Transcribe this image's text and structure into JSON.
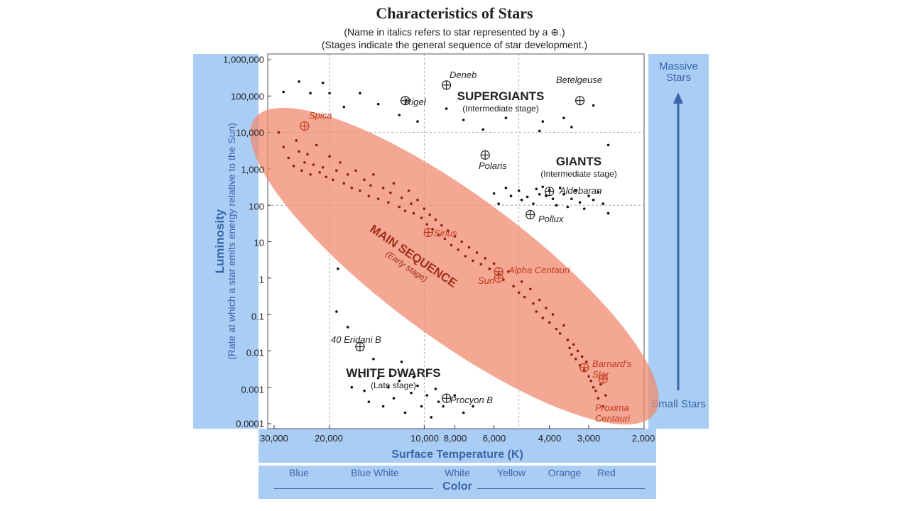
{
  "title": "Characteristics of Stars",
  "subtitle1": "(Name in italics refers to star represented by a ⊕.)",
  "subtitle2": "(Stages indicate the general sequence of star development.)",
  "y_axis": {
    "title": "Luminosity",
    "subtitle": "(Rate at which a star emits energy relative to the Sun)"
  },
  "x_axis": {
    "title": "Surface Temperature (K)"
  },
  "right_panel": {
    "top": "Massive Stars",
    "bottom": "Small Stars"
  },
  "color_axis": {
    "title": "Color",
    "names": [
      "Blue",
      "Blue White",
      "White",
      "Yellow",
      "Orange",
      "Red"
    ]
  },
  "regions": {
    "supergiants": {
      "title": "SUPERGIANTS",
      "stage": "(Intermediate stage)"
    },
    "giants": {
      "title": "GIANTS",
      "stage": "(Intermediate stage)"
    },
    "main_sequence": {
      "title": "MAIN SEQUENCE",
      "stage": "(Early stage)"
    },
    "white_dwarfs": {
      "title": "WHITE DWARFS",
      "stage": "(Late stage)"
    }
  },
  "named_stars": [
    {
      "name": "Deneb",
      "temp": 8500,
      "lum": 200000
    },
    {
      "name": "Rigel",
      "temp": 11500,
      "lum": 75000
    },
    {
      "name": "Betelgeuse",
      "temp": 3200,
      "lum": 75000
    },
    {
      "name": "Spica",
      "temp": 24000,
      "lum": 15000
    },
    {
      "name": "Polaris",
      "temp": 6400,
      "lum": 2400
    },
    {
      "name": "Aldebaran",
      "temp": 4000,
      "lum": 240
    },
    {
      "name": "Pollux",
      "temp": 4600,
      "lum": 55
    },
    {
      "name": "Sirius",
      "temp": 9700,
      "lum": 18
    },
    {
      "name": "Alpha Centauri",
      "temp": 5800,
      "lum": 1.5
    },
    {
      "name": "Sun",
      "temp": 5800,
      "lum": 1
    },
    {
      "name": "40 Eridani B",
      "temp": 16000,
      "lum": 0.013
    },
    {
      "name": "Barnard's Star",
      "temp": 3100,
      "lum": 0.0035
    },
    {
      "name": "Procyon B",
      "temp": 8500,
      "lum": 0.0005
    },
    {
      "name": "Proxima Centauri",
      "temp": 2700,
      "lum": 0.0017
    }
  ],
  "chart_data": {
    "type": "scatter",
    "title": "Characteristics of Stars",
    "xlabel": "Surface Temperature (K)",
    "ylabel": "Luminosity",
    "x_scale": "log-reversed",
    "y_scale": "log",
    "xlim": [
      30000,
      2000
    ],
    "ylim": [
      0.0001,
      1000000
    ],
    "x_ticks": [
      "30,000",
      "20,000",
      "10,000",
      "8,000",
      "6,000",
      "4,000",
      "3,000",
      "2,000"
    ],
    "x_tick_values": [
      30000,
      20000,
      10000,
      8000,
      6000,
      4000,
      3000,
      2000
    ],
    "y_ticks": [
      "1,000,000",
      "100,000",
      "10,000",
      "1,000",
      "100",
      "10",
      "1",
      "0.1",
      "0.01",
      "0.001",
      "0.0001"
    ],
    "y_tick_values": [
      1000000,
      100000,
      10000,
      1000,
      100,
      10,
      1,
      0.1,
      0.01,
      0.001,
      0.0001
    ],
    "gridlines": "dashed",
    "main_sequence_points": [
      [
        29000,
        10000
      ],
      [
        28000,
        4000
      ],
      [
        27000,
        2000
      ],
      [
        26000,
        1200
      ],
      [
        25500,
        6000
      ],
      [
        25000,
        3000
      ],
      [
        24500,
        900
      ],
      [
        24000,
        1500
      ],
      [
        23500,
        2500
      ],
      [
        23000,
        700
      ],
      [
        22500,
        1300
      ],
      [
        22000,
        4500
      ],
      [
        21500,
        800
      ],
      [
        21000,
        1100
      ],
      [
        20500,
        600
      ],
      [
        20000,
        2200
      ],
      [
        19500,
        500
      ],
      [
        19000,
        900
      ],
      [
        18500,
        1500
      ],
      [
        18000,
        400
      ],
      [
        17500,
        700
      ],
      [
        17000,
        300
      ],
      [
        16500,
        900
      ],
      [
        16000,
        250
      ],
      [
        15500,
        500
      ],
      [
        15000,
        180
      ],
      [
        14800,
        350
      ],
      [
        14500,
        700
      ],
      [
        14000,
        150
      ],
      [
        13500,
        300
      ],
      [
        13000,
        120
      ],
      [
        12800,
        220
      ],
      [
        12500,
        400
      ],
      [
        12000,
        90
      ],
      [
        11800,
        160
      ],
      [
        11500,
        70
      ],
      [
        11200,
        250
      ],
      [
        11000,
        110
      ],
      [
        10800,
        60
      ],
      [
        10500,
        140
      ],
      [
        10200,
        45
      ],
      [
        10000,
        80
      ],
      [
        9800,
        30
      ],
      [
        9600,
        55
      ],
      [
        9400,
        22
      ],
      [
        9200,
        40
      ],
      [
        9000,
        15
      ],
      [
        8800,
        28
      ],
      [
        8600,
        12
      ],
      [
        8400,
        20
      ],
      [
        8200,
        8
      ],
      [
        8000,
        14
      ],
      [
        7800,
        6
      ],
      [
        7600,
        10
      ],
      [
        7400,
        4
      ],
      [
        7200,
        7
      ],
      [
        7000,
        3
      ],
      [
        6800,
        5
      ],
      [
        6600,
        2.4
      ],
      [
        6400,
        3.5
      ],
      [
        6200,
        1.8
      ],
      [
        6000,
        2.5
      ],
      [
        5800,
        1.3
      ],
      [
        5600,
        0.9
      ],
      [
        5400,
        1.5
      ],
      [
        5200,
        0.6
      ],
      [
        5000,
        0.4
      ],
      [
        4900,
        0.8
      ],
      [
        4800,
        0.3
      ],
      [
        4600,
        0.5
      ],
      [
        4500,
        0.2
      ],
      [
        4400,
        0.12
      ],
      [
        4300,
        0.25
      ],
      [
        4200,
        0.08
      ],
      [
        4100,
        0.15
      ],
      [
        4000,
        0.06
      ],
      [
        3900,
        0.1
      ],
      [
        3800,
        0.04
      ],
      [
        3700,
        0.03
      ],
      [
        3600,
        0.05
      ],
      [
        3500,
        0.02
      ],
      [
        3450,
        0.012
      ],
      [
        3400,
        0.008
      ],
      [
        3350,
        0.015
      ],
      [
        3300,
        0.006
      ],
      [
        3250,
        0.01
      ],
      [
        3200,
        0.004
      ],
      [
        3150,
        0.007
      ],
      [
        3100,
        0.003
      ],
      [
        3050,
        0.005
      ],
      [
        3000,
        0.002
      ],
      [
        2950,
        0.0015
      ],
      [
        2900,
        0.001
      ],
      [
        2850,
        0.0008
      ],
      [
        2800,
        0.0005
      ],
      [
        2750,
        0.0012
      ],
      [
        2700,
        0.0003
      ],
      [
        2650,
        0.0006
      ]
    ],
    "supergiant_points": [
      [
        28000,
        130000
      ],
      [
        25000,
        250000
      ],
      [
        23000,
        120000
      ],
      [
        21000,
        230000
      ],
      [
        20000,
        120000
      ],
      [
        18000,
        50000
      ],
      [
        16000,
        120000
      ],
      [
        14000,
        60000
      ],
      [
        12000,
        30000
      ],
      [
        10500,
        20000
      ],
      [
        8500,
        45000
      ],
      [
        7500,
        22000
      ],
      [
        6500,
        12000
      ],
      [
        5500,
        25000
      ],
      [
        4200,
        20000
      ],
      [
        4300,
        11000
      ],
      [
        3600,
        25000
      ],
      [
        3400,
        14000
      ],
      [
        2900,
        55000
      ],
      [
        2600,
        4500
      ]
    ],
    "giant_points": [
      [
        6000,
        210
      ],
      [
        5800,
        110
      ],
      [
        5500,
        300
      ],
      [
        5300,
        180
      ],
      [
        5000,
        250
      ],
      [
        4900,
        140
      ],
      [
        4700,
        170
      ],
      [
        4500,
        110
      ],
      [
        4400,
        280
      ],
      [
        4300,
        200
      ],
      [
        4200,
        320
      ],
      [
        4100,
        180
      ],
      [
        4000,
        260
      ],
      [
        3900,
        150
      ],
      [
        3800,
        100
      ],
      [
        3700,
        300
      ],
      [
        3600,
        200
      ],
      [
        3500,
        90
      ],
      [
        3400,
        150
      ],
      [
        3300,
        250
      ],
      [
        3200,
        120
      ],
      [
        3100,
        80
      ],
      [
        3000,
        180
      ],
      [
        2900,
        140
      ],
      [
        2800,
        230
      ],
      [
        2700,
        110
      ],
      [
        2600,
        60
      ]
    ],
    "white_dwarf_points": [
      [
        17000,
        0.001
      ],
      [
        16000,
        0.002
      ],
      [
        15500,
        0.0008
      ],
      [
        15000,
        0.0004
      ],
      [
        14500,
        0.006
      ],
      [
        14000,
        0.0018
      ],
      [
        13500,
        0.0003
      ],
      [
        13000,
        0.001
      ],
      [
        12500,
        0.0005
      ],
      [
        12000,
        0.0015
      ],
      [
        11500,
        0.0002
      ],
      [
        11000,
        0.0007
      ],
      [
        10500,
        0.0011
      ],
      [
        10200,
        0.0003
      ],
      [
        9800,
        0.0006
      ],
      [
        9500,
        0.00015
      ],
      [
        9200,
        0.0009
      ],
      [
        9000,
        0.0004
      ],
      [
        8700,
        0.0003
      ],
      [
        8000,
        0.0006
      ],
      [
        7500,
        0.0002
      ],
      [
        7000,
        0.0003
      ],
      [
        11800,
        0.005
      ],
      [
        10800,
        0.0019
      ],
      [
        12800,
        0.0021
      ],
      [
        19000,
        0.12
      ],
      [
        18800,
        1.8
      ],
      [
        17500,
        0.045
      ]
    ]
  }
}
